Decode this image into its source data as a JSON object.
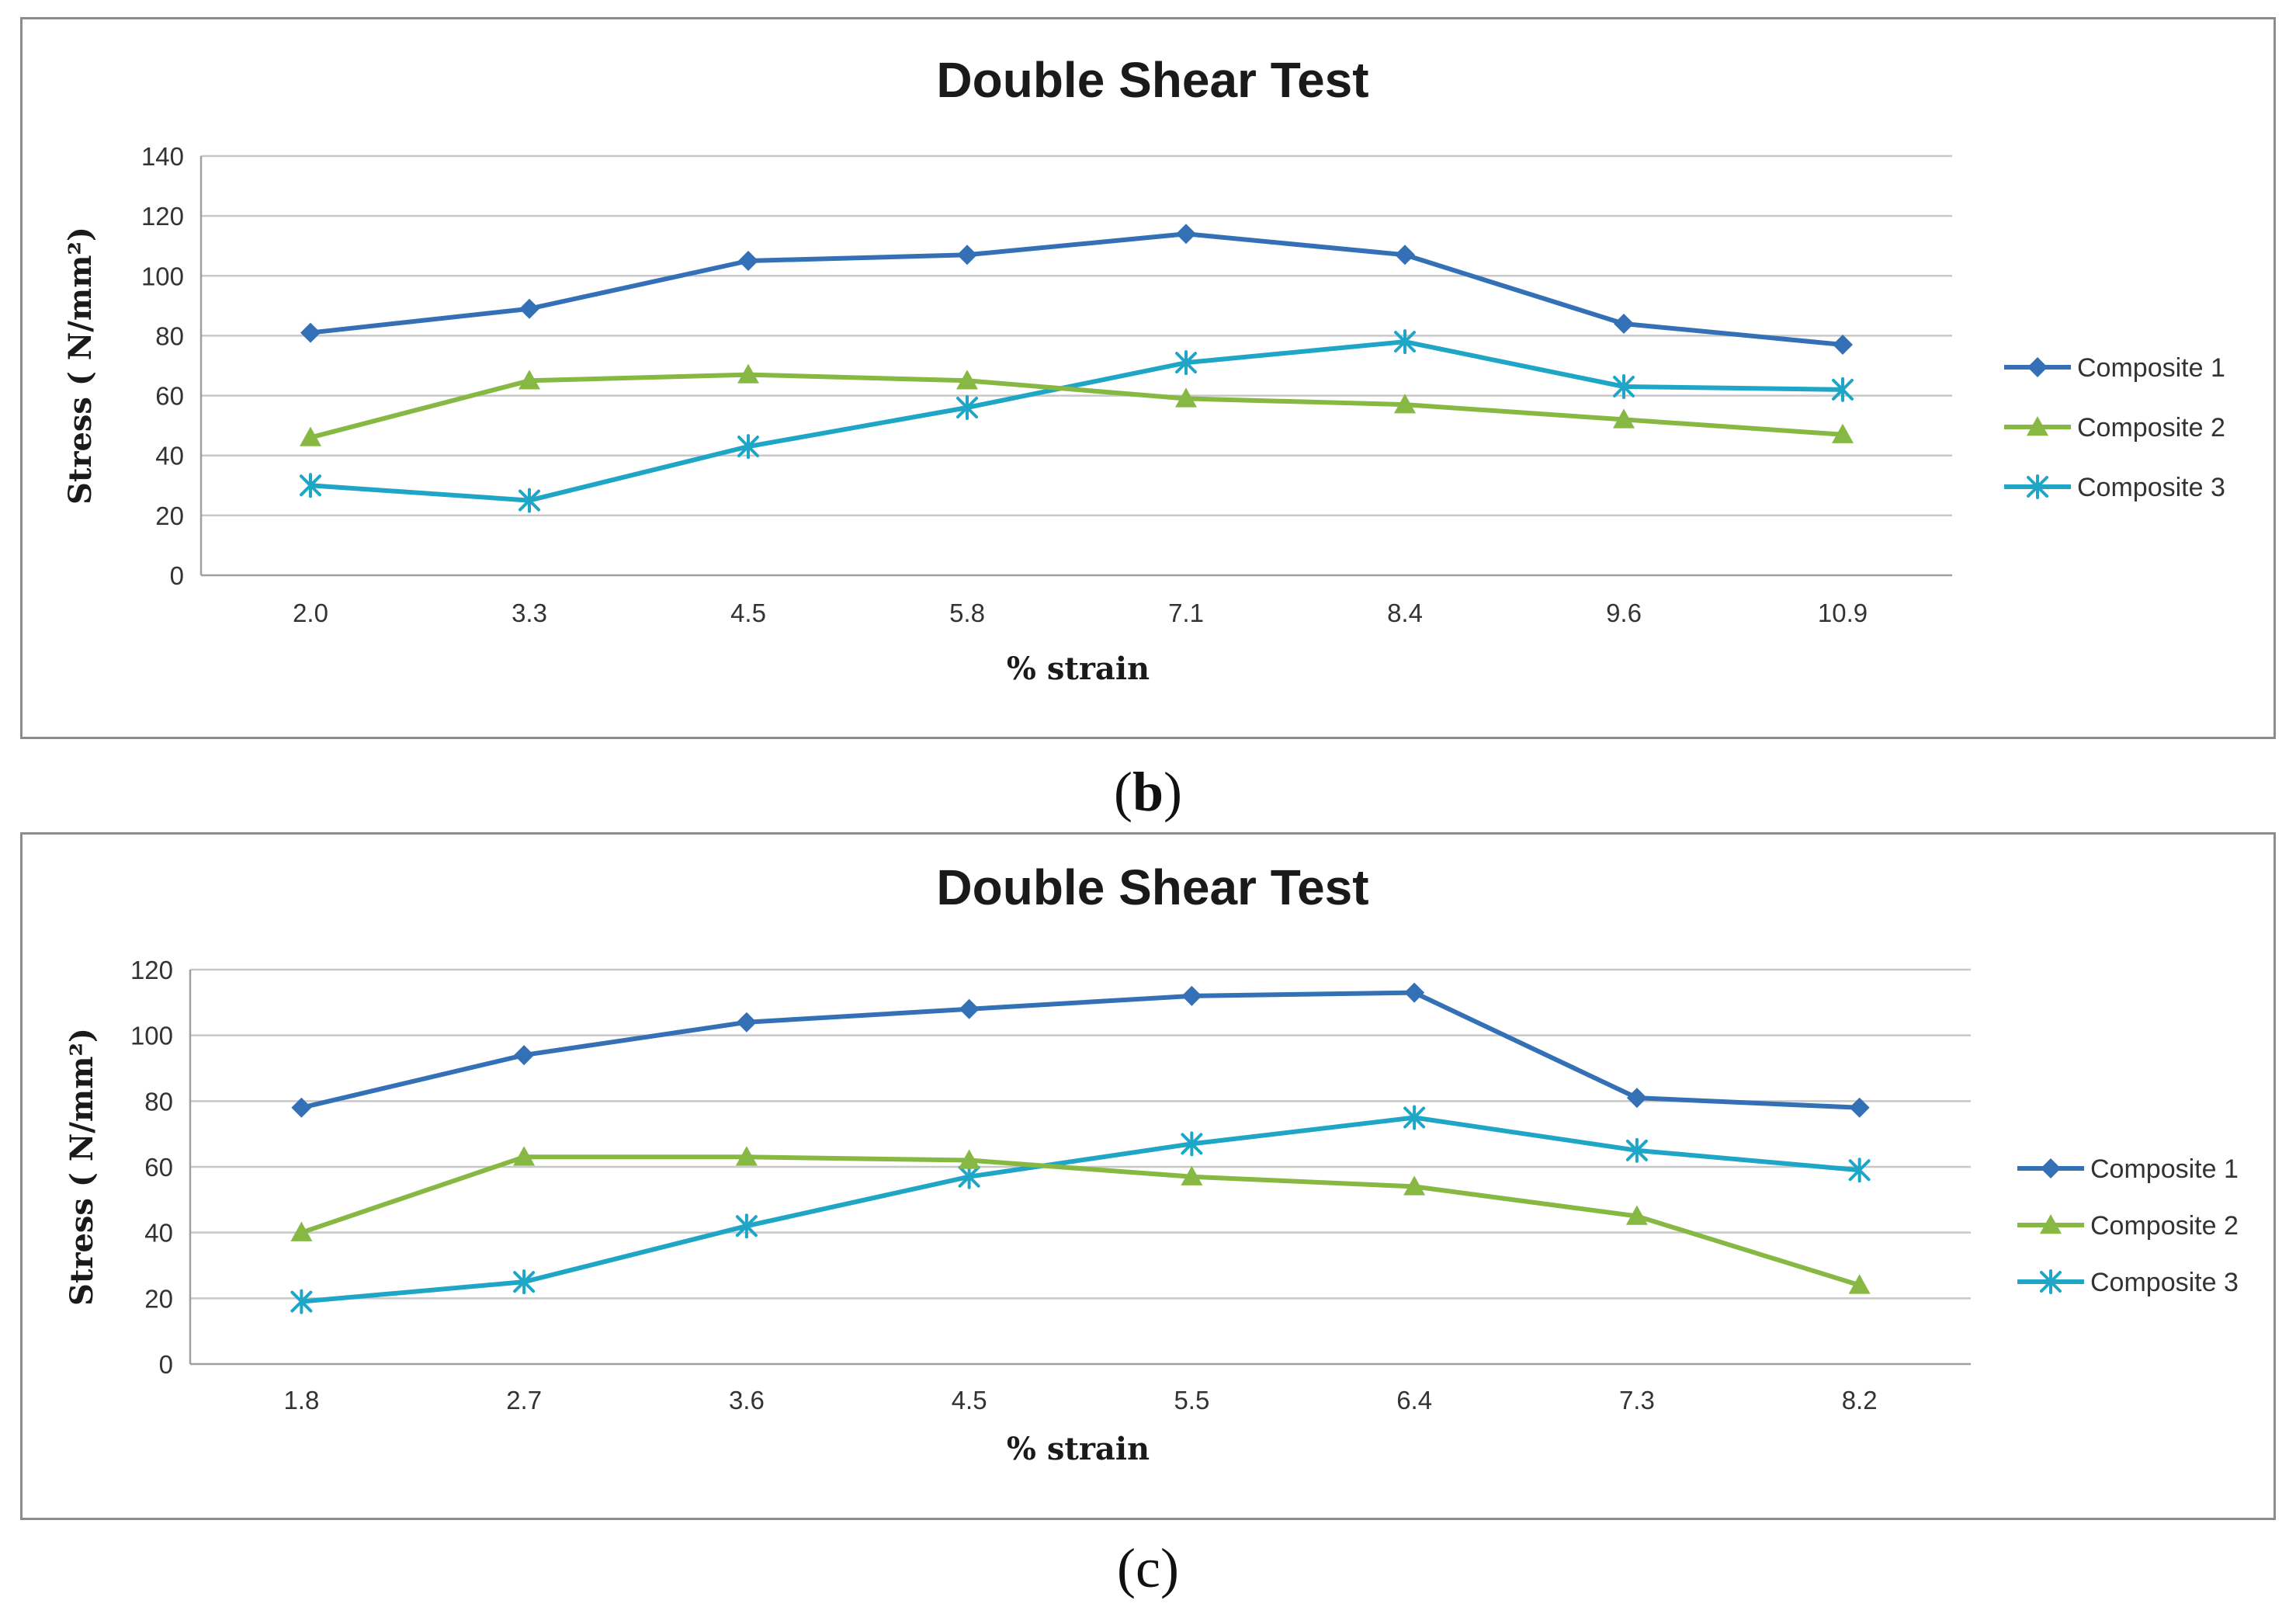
{
  "colors": {
    "composite_1": "#3470B6",
    "composite_2": "#86B843",
    "composite_3": "#1FA6C6",
    "grid": "#c8c8c8",
    "axis": "#a0a0a0"
  },
  "panels": [
    {
      "label": "b"
    },
    {
      "label": "c"
    }
  ],
  "chart_data": [
    {
      "type": "line",
      "title": "Double Shear Test",
      "xlabel": "% strain",
      "ylabel": "Stress ( N/mm²)",
      "categories": [
        "2.0",
        "3.3",
        "4.5",
        "5.8",
        "7.1",
        "8.4",
        "9.6",
        "10.9"
      ],
      "ylim": [
        0,
        140
      ],
      "yticks": [
        0,
        20,
        40,
        60,
        80,
        100,
        120,
        140
      ],
      "grid": true,
      "legend": "right",
      "series": [
        {
          "name": "Composite 1",
          "marker": "diamond",
          "values": [
            81,
            89,
            105,
            107,
            114,
            107,
            84,
            77
          ]
        },
        {
          "name": "Composite 2",
          "marker": "triangle",
          "values": [
            46,
            65,
            67,
            65,
            59,
            57,
            52,
            47
          ]
        },
        {
          "name": "Composite 3",
          "marker": "star",
          "values": [
            30,
            25,
            43,
            56,
            71,
            78,
            63,
            62
          ]
        }
      ]
    },
    {
      "type": "line",
      "title": "Double Shear Test",
      "xlabel": "% strain",
      "ylabel": "Stress ( N/mm²)",
      "categories": [
        "1.8",
        "2.7",
        "3.6",
        "4.5",
        "5.5",
        "6.4",
        "7.3",
        "8.2"
      ],
      "ylim": [
        0,
        120
      ],
      "yticks": [
        0,
        20,
        40,
        60,
        80,
        100,
        120
      ],
      "grid": true,
      "legend": "right",
      "series": [
        {
          "name": "Composite 1",
          "marker": "diamond",
          "values": [
            78,
            94,
            104,
            108,
            112,
            113,
            81,
            78
          ]
        },
        {
          "name": "Composite 2",
          "marker": "triangle",
          "values": [
            40,
            63,
            63,
            62,
            57,
            54,
            45,
            24
          ]
        },
        {
          "name": "Composite 3",
          "marker": "star",
          "values": [
            19,
            25,
            42,
            57,
            67,
            75,
            65,
            59
          ]
        }
      ]
    }
  ]
}
